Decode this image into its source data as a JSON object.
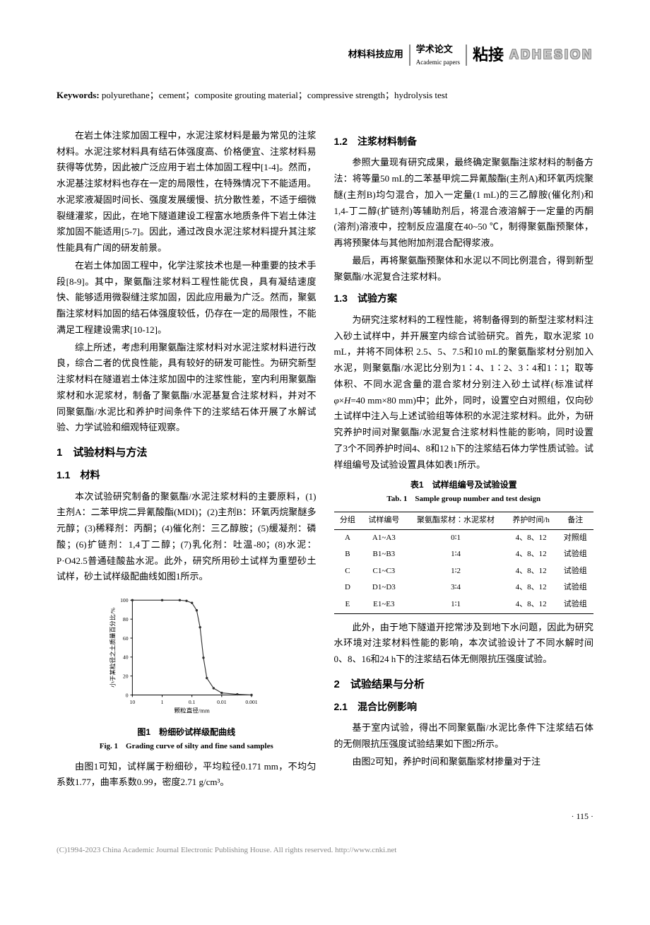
{
  "header": {
    "section1": "材料科技应用",
    "section2_cn": "学术论文",
    "section2_en": "Academic papers",
    "zhanjie": "粘接",
    "adhesion": "ADHESION"
  },
  "keywords_label": "Keywords:",
  "keywords_text": " polyurethane；cement；composite grouting material；compressive strength；hydrolysis test",
  "left_col": {
    "p1": "在岩土体注浆加固工程中，水泥注浆材料是最为常见的注浆材料。水泥注浆材料具有结石体强度高、价格便宜、注浆材料易获得等优势，因此被广泛应用于岩土体加固工程中[1-4]。然而，水泥基注浆材料也存在一定的局限性，在特殊情况下不能适用。水泥浆液凝固时间长、强度发展缓慢、抗分散性差，不适于细微裂缝灌浆，因此，在地下隧道建设工程富水地质条件下岩土体注浆加固不能适用[5-7]。因此，通过改良水泥注浆材料提升其注浆性能具有广阔的研发前景。",
    "p2": "在岩土体加固工程中，化学注浆技术也是一种重要的技术手段[8-9]。其中，聚氨酯注浆材料工程性能优良，具有凝结速度快、能够适用微裂缝注浆加固，因此应用最为广泛。然而，聚氨酯注浆材料加固的结石体强度较低，仍存在一定的局限性，不能满足工程建设需求[10-12]。",
    "p3": "综上所述，考虑利用聚氨酯注浆材料对水泥注浆材料进行改良，综合二者的优良性能，具有较好的研发可能性。为研究新型注浆材料在隧道岩土体注浆加固中的注浆性能，室内利用聚氨酯浆材和水泥浆材，制备了聚氨酯/水泥基复合注浆材料，并对不同聚氨酯/水泥比和养护时间条件下的注浆结石体开展了水解试验、力学试验和细观特征观察。",
    "sec1_title": "1　试验材料与方法",
    "sec1_1_num": "1.1",
    "sec1_1_label": "材料",
    "p4": "本次试验研究制备的聚氨酯/水泥注浆材料的主要原料，(1)主剂A：二苯甲烷二异氰酸酯(MDI)；(2)主剂B：环氧丙烷聚醚多元醇；(3)稀释剂：丙酮；(4)催化剂：三乙醇胺；(5)缓凝剂：磷酸；(6)扩链剂：1,4丁二醇；(7)乳化剂：吐温-80；(8)水泥：P·O42.5普通硅酸盐水泥。此外，研究所用砂土试样为重塑砂土试样，砂土试样级配曲线如图1所示。",
    "fig1_caption_cn": "图1　粉细砂试样级配曲线",
    "fig1_caption_en": "Fig. 1　Grading curve of silty and fine sand samples",
    "p5": "由图1可知，试样属于粉细砂，平均粒径0.171 mm，不均匀系数1.77，曲率系数0.99，密度2.71 g/cm³。"
  },
  "right_col": {
    "sec1_2_num": "1.2",
    "sec1_2_label": "注浆材料制备",
    "p1": "参照大量现有研究成果，最终确定聚氨酯注浆材料的制备方法：将等量50 mL的二苯基甲烷二异氰酸酯(主剂A)和环氧丙烷聚醚(主剂B)均匀混合，加入一定量(1 mL)的三乙醇胺(催化剂)和1,4-丁二醇(扩链剂)等辅助剂后，将混合液溶解于一定量的丙酮(溶剂)溶液中，控制反应温度在40~50 ℃，制得聚氨酯预聚体，再将预聚体与其他附加剂混合配得浆液。",
    "p2": "最后，再将聚氨酯预聚体和水泥以不同比例混合，得到新型聚氨酯/水泥复合注浆材料。",
    "sec1_3_num": "1.3",
    "sec1_3_label": "试验方案",
    "p3_a": "为研究注浆材料的工程性能，将制备得到的新型注浆材料注入砂土试样中，并开展室内综合试验研究。首先，取水泥浆 10 mL，并将不同体积 2.5、5、7.5和10 mL的聚氨酯浆材分别加入水泥，则聚氨酯/水泥比分别为1∶4、1∶2、3∶4和1∶1；取等体积、不同水泥含量的混合浆材分别注入砂土试样(标准试样",
    "p3_b": "=40 mm×80 mm)中；此外，同时，设置空白对照组，仅向砂土试样中注入与上述试验组等体积的水泥注浆材料。此外，为研究养护时间对聚氨酯/水泥复合注浆材料性能的影响，同时设置了3个不同养护时间4、8和12 h下的注浆结石体力学性质试验。试样组编号及试验设置具体如表1所示。",
    "tab1_caption_cn": "表1　试样组编号及试验设置",
    "tab1_caption_en": "Tab. 1　Sample group number and test design",
    "p4": "此外，由于地下隧道开挖常涉及到地下水问题，因此为研究水环境对注浆材料性能的影响，本次试验设计了不同水解时间0、8、16和24 h下的注浆结石体无侧限抗压强度试验。",
    "sec2_title": "2　试验结果与分析",
    "sec2_1_num": "2.1",
    "sec2_1_label": "混合比例影响",
    "p5": "基于室内试验，得出不同聚氨酯/水泥比条件下注浆结石体的无侧限抗压强度试验结果如下图2所示。",
    "p6": "由图2可知，养护时间和聚氨酯浆材掺量对于注"
  },
  "table1": {
    "headers": [
      "分组",
      "试样编号",
      "聚氨酯浆材∶水泥浆材",
      "养护时间/h",
      "备注"
    ],
    "rows": [
      [
        "A",
        "A1~A3",
        "0∶1",
        "4、8、12",
        "对照组"
      ],
      [
        "B",
        "B1~B3",
        "1∶4",
        "4、8、12",
        "试验组"
      ],
      [
        "C",
        "C1~C3",
        "1∶2",
        "4、8、12",
        "试验组"
      ],
      [
        "D",
        "D1~D3",
        "3∶4",
        "4、8、12",
        "试验组"
      ],
      [
        "E",
        "E1~E3",
        "1∶1",
        "4、8、12",
        "试验组"
      ]
    ]
  },
  "chart": {
    "ylabel": "小于某粒径之土质量百分比/%",
    "xlabel": "颗粒直径/mm",
    "xticks": [
      "10",
      "1",
      "0.1",
      "0.01",
      "0.001"
    ],
    "yticks": [
      "0",
      "20",
      "40",
      "60",
      "80",
      "100"
    ],
    "xpositions": [
      40,
      84,
      128,
      172,
      216
    ],
    "ypositions": [
      150,
      122,
      94,
      66,
      38,
      10
    ],
    "line_points": [
      [
        40,
        10
      ],
      [
        84,
        10
      ],
      [
        110,
        10
      ],
      [
        120,
        11
      ],
      [
        128,
        14
      ],
      [
        135,
        25
      ],
      [
        140,
        50
      ],
      [
        145,
        95
      ],
      [
        150,
        125
      ],
      [
        160,
        140
      ],
      [
        172,
        147
      ],
      [
        195,
        149
      ],
      [
        216,
        150
      ]
    ],
    "line_color": "#333333",
    "marker_color": "#333333",
    "axis_color": "#000000",
    "bg_color": "#ffffff"
  },
  "page_num": "· 115 ·",
  "footer": "(C)1994-2023 China Academic Journal Electronic Publishing House. All rights reserved.    http://www.cnki.net"
}
